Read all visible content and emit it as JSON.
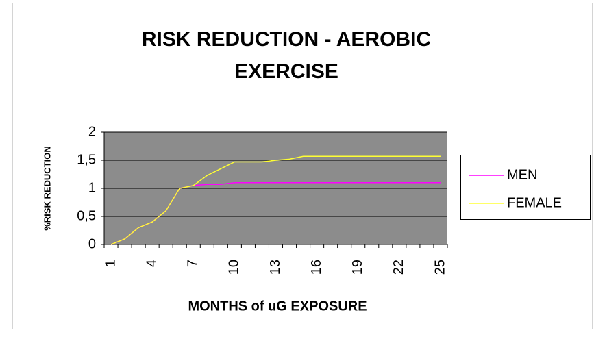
{
  "chart_data": {
    "type": "line",
    "title": "RISK REDUCTION - AEROBIC EXERCISE",
    "xlabel": "MONTHS of uG EXPOSURE",
    "ylabel": "%RISK REDUCTION",
    "categories": [
      1,
      null,
      null,
      4,
      null,
      null,
      7,
      null,
      null,
      10,
      null,
      null,
      13,
      null,
      null,
      16,
      null,
      null,
      19,
      null,
      null,
      22,
      null,
      null,
      25
    ],
    "series": [
      {
        "name": "MEN",
        "color": "#ff00ff",
        "values": [
          0,
          0.1,
          0.3,
          0.4,
          0.6,
          1.0,
          1.05,
          1.07,
          1.07,
          1.1,
          1.1,
          1.1,
          1.1,
          1.1,
          1.1,
          1.1,
          1.1,
          1.1,
          1.1,
          1.1,
          1.1,
          1.1,
          1.1,
          1.1,
          1.1
        ]
      },
      {
        "name": "FEMALE",
        "color": "#ffff33",
        "values": [
          0,
          0.1,
          0.3,
          0.4,
          0.6,
          1.0,
          1.05,
          1.23,
          1.35,
          1.47,
          1.47,
          1.47,
          1.5,
          1.52,
          1.57,
          1.57,
          1.57,
          1.57,
          1.57,
          1.57,
          1.57,
          1.57,
          1.57,
          1.57,
          1.57
        ]
      }
    ],
    "ylim": [
      0,
      2
    ],
    "yticks": [
      0,
      {
        "value": 0.5,
        "label": "0,5"
      },
      1,
      {
        "value": 1.5,
        "label": "1,5"
      },
      2
    ],
    "grid": true,
    "legend": "right",
    "plot_background": "#8c8c8c"
  }
}
